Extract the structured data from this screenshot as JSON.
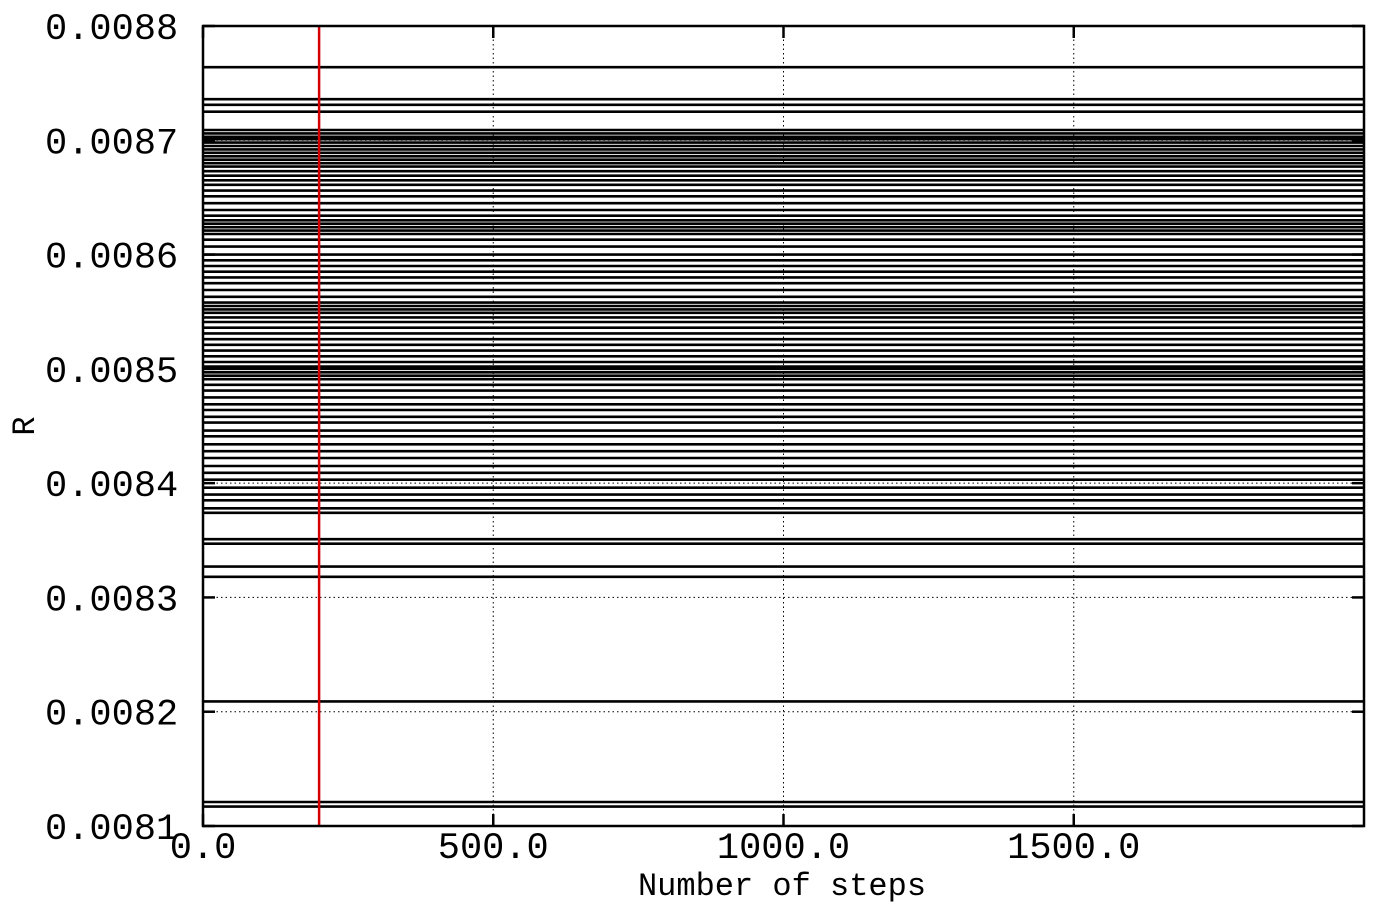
{
  "chart_data": {
    "type": "line",
    "title": "",
    "xlabel": "Number of steps",
    "ylabel": "R",
    "xlim": [
      0,
      2000
    ],
    "ylim": [
      0.0081,
      0.0088
    ],
    "grid": true,
    "x_ticks": [
      {
        "value": 0,
        "label": "0.0"
      },
      {
        "value": 500,
        "label": "500.0"
      },
      {
        "value": 1000,
        "label": "1000.0"
      },
      {
        "value": 1500,
        "label": "1500.0"
      }
    ],
    "y_ticks": [
      {
        "value": 0.0081,
        "label": "0.0081"
      },
      {
        "value": 0.0082,
        "label": "0.0082"
      },
      {
        "value": 0.0083,
        "label": "0.0083"
      },
      {
        "value": 0.0084,
        "label": "0.0084"
      },
      {
        "value": 0.0085,
        "label": "0.0085"
      },
      {
        "value": 0.0086,
        "label": "0.0086"
      },
      {
        "value": 0.0087,
        "label": "0.0087"
      },
      {
        "value": 0.0088,
        "label": "0.0088"
      }
    ],
    "series_color": "#000000",
    "vline": {
      "x": 200,
      "color": "#d40000"
    },
    "series_levels": [
      0.008117,
      0.008121,
      0.008209,
      0.008318,
      0.008327,
      0.008347,
      0.008351,
      0.008374,
      0.008378,
      0.008385,
      0.00839,
      0.008396,
      0.008403,
      0.008409,
      0.008415,
      0.008422,
      0.008428,
      0.008434,
      0.008441,
      0.008446,
      0.008453,
      0.008458,
      0.008464,
      0.008469,
      0.008475,
      0.008481,
      0.008486,
      0.008491,
      0.008494,
      0.008497,
      0.0085,
      0.008502,
      0.008506,
      0.008511,
      0.008516,
      0.008521,
      0.008526,
      0.008531,
      0.008536,
      0.008541,
      0.008545,
      0.008549,
      0.008552,
      0.008555,
      0.008558,
      0.008563,
      0.008569,
      0.008575,
      0.00858,
      0.008585,
      0.00859,
      0.008595,
      0.0086,
      0.008607,
      0.008613,
      0.008618,
      0.008621,
      0.008624,
      0.008627,
      0.00863,
      0.008634,
      0.008639,
      0.008645,
      0.008651,
      0.008656,
      0.008661,
      0.008665,
      0.008669,
      0.008673,
      0.008677,
      0.00868,
      0.008683,
      0.008686,
      0.008689,
      0.008692,
      0.008695,
      0.008698,
      0.008701,
      0.008703,
      0.008706,
      0.008709,
      0.008725,
      0.008731,
      0.008736,
      0.008764
    ]
  }
}
